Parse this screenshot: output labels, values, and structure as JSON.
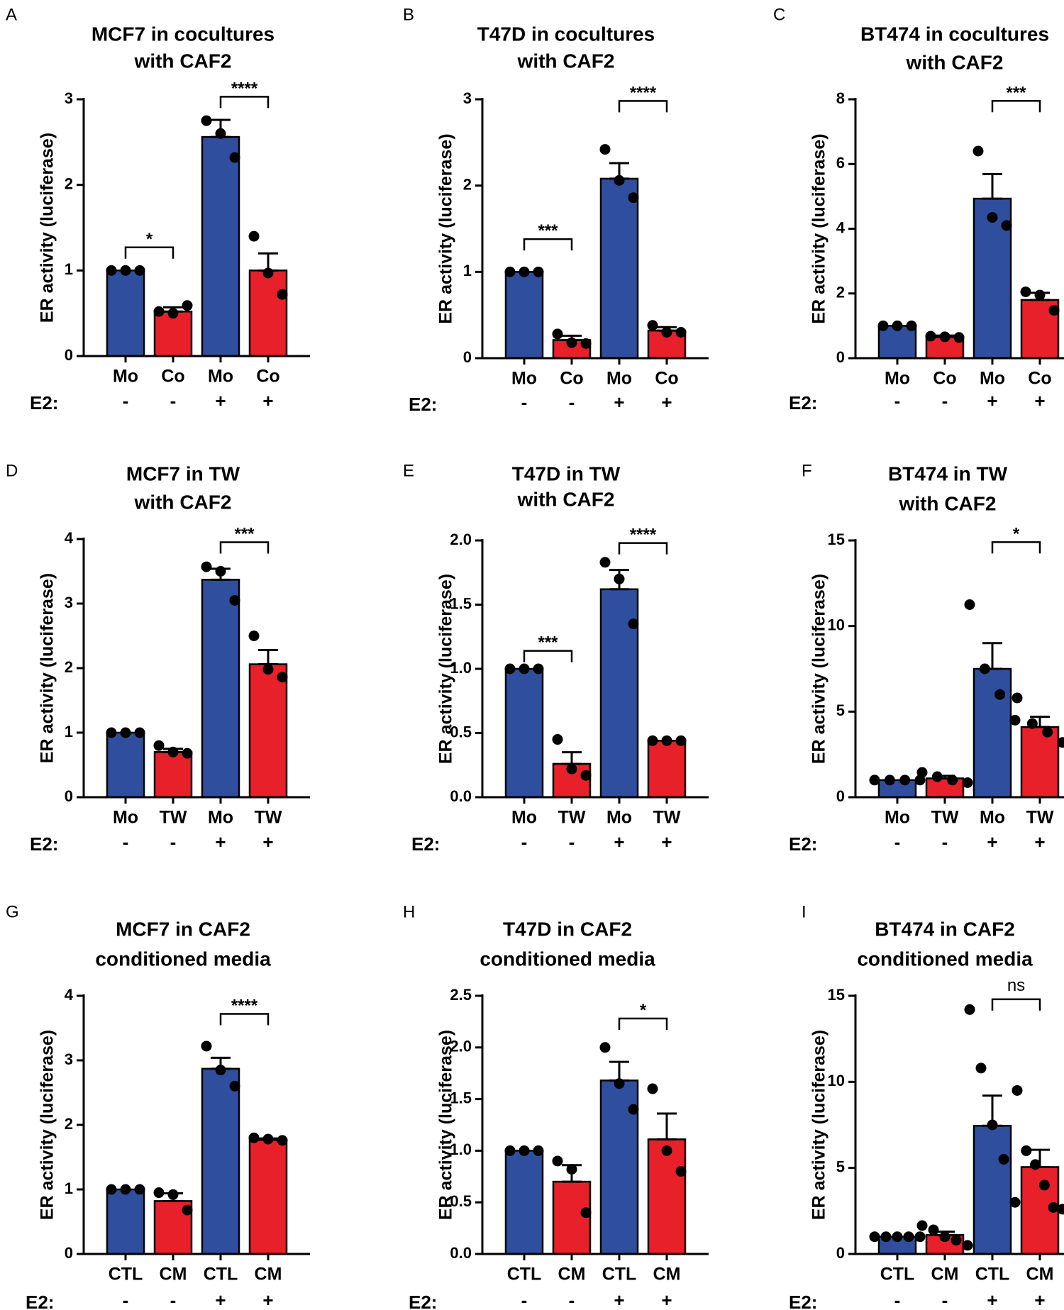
{
  "figure": {
    "e2_label": "E2:"
  },
  "chart_data": [
    {
      "panel": "A",
      "type": "bar",
      "title": [
        "MCF7 in cocultures",
        "with CAF2"
      ],
      "ylabel": "ER activity (luciferase)",
      "ylim": [
        0,
        3
      ],
      "yticks": [
        0,
        1,
        2,
        3
      ],
      "ytick_labels": [
        "0",
        "1",
        "2",
        "3"
      ],
      "categories": [
        "Mo",
        "Co",
        "Mo",
        "Co"
      ],
      "e2": [
        "-",
        "-",
        "+",
        "+"
      ],
      "colors": [
        "#2f4f9e",
        "#e8202a",
        "#2f4f9e",
        "#e8202a"
      ],
      "values": [
        1.0,
        0.52,
        2.56,
        1.0
      ],
      "sem": [
        0.0,
        0.05,
        0.2,
        0.2
      ],
      "points": [
        [
          1.0,
          1.0,
          1.0
        ],
        [
          0.52,
          0.5,
          0.59
        ],
        [
          2.75,
          2.6,
          2.32
        ],
        [
          1.4,
          0.97,
          0.72
        ]
      ],
      "significance": [
        {
          "from": 0,
          "to": 1,
          "y": 1.27,
          "label": "*"
        },
        {
          "from": 2,
          "to": 3,
          "y": 3.03,
          "label": "****"
        }
      ]
    },
    {
      "panel": "B",
      "type": "bar",
      "title": [
        "T47D in cocultures",
        "with CAF2"
      ],
      "ylabel": "ER activity (luciferase)",
      "ylim": [
        0,
        3
      ],
      "yticks": [
        0,
        1,
        2,
        3
      ],
      "ytick_labels": [
        "0",
        "1",
        "2",
        "3"
      ],
      "categories": [
        "Mo",
        "Co",
        "Mo",
        "Co"
      ],
      "e2": [
        "-",
        "-",
        "+",
        "+"
      ],
      "colors": [
        "#2f4f9e",
        "#e8202a",
        "#2f4f9e",
        "#e8202a"
      ],
      "values": [
        1.0,
        0.21,
        2.08,
        0.32
      ],
      "sem": [
        0.0,
        0.05,
        0.18,
        0.04
      ],
      "points": [
        [
          1.0,
          1.0,
          1.0
        ],
        [
          0.28,
          0.18,
          0.17
        ],
        [
          2.42,
          2.06,
          1.86
        ],
        [
          0.38,
          0.3,
          0.3
        ]
      ],
      "significance": [
        {
          "from": 0,
          "to": 1,
          "y": 1.38,
          "label": "***"
        },
        {
          "from": 2,
          "to": 3,
          "y": 2.98,
          "label": "****"
        }
      ]
    },
    {
      "panel": "C",
      "type": "bar",
      "title": [
        "BT474 in cocultures",
        "with CAF2"
      ],
      "ylabel": "ER activity (luciferase)",
      "ylim": [
        0,
        8
      ],
      "yticks": [
        0,
        2,
        4,
        6,
        8
      ],
      "ytick_labels": [
        "0",
        "2",
        "4",
        "6",
        "8"
      ],
      "categories": [
        "Mo",
        "Co",
        "Mo",
        "Co"
      ],
      "e2": [
        "-",
        "-",
        "+",
        "+"
      ],
      "colors": [
        "#2f4f9e",
        "#e8202a",
        "#2f4f9e",
        "#e8202a"
      ],
      "values": [
        1.0,
        0.66,
        4.93,
        1.8
      ],
      "sem": [
        0.0,
        0.04,
        0.76,
        0.22
      ],
      "points": [
        [
          1.0,
          1.0,
          1.0
        ],
        [
          0.68,
          0.66,
          0.64
        ],
        [
          6.4,
          4.35,
          4.1
        ],
        [
          2.05,
          1.95,
          1.48
        ]
      ],
      "significance": [
        {
          "from": 2,
          "to": 3,
          "y": 7.95,
          "label": "***"
        }
      ]
    },
    {
      "panel": "D",
      "type": "bar",
      "title": [
        "MCF7 in TW",
        "with CAF2"
      ],
      "ylabel": "ER activity (luciferase)",
      "ylim": [
        0,
        4
      ],
      "yticks": [
        0,
        1,
        2,
        3,
        4
      ],
      "ytick_labels": [
        "0",
        "1",
        "2",
        "3",
        "4"
      ],
      "categories": [
        "Mo",
        "TW",
        "Mo",
        "TW"
      ],
      "e2": [
        "-",
        "-",
        "+",
        "+"
      ],
      "colors": [
        "#2f4f9e",
        "#e8202a",
        "#2f4f9e",
        "#e8202a"
      ],
      "values": [
        1.0,
        0.7,
        3.37,
        2.06
      ],
      "sem": [
        0.0,
        0.05,
        0.17,
        0.22
      ],
      "points": [
        [
          1.0,
          1.0,
          1.0
        ],
        [
          0.8,
          0.7,
          0.68
        ],
        [
          3.57,
          3.5,
          3.05
        ],
        [
          2.5,
          1.98,
          1.86
        ]
      ],
      "significance": [
        {
          "from": 2,
          "to": 3,
          "y": 3.95,
          "label": "***"
        }
      ]
    },
    {
      "panel": "E",
      "type": "bar",
      "title": [
        "T47D in TW",
        "with CAF2"
      ],
      "ylabel": "ER activity (luciferase)",
      "ylim": [
        0,
        2
      ],
      "yticks": [
        0,
        0.5,
        1,
        1.5,
        2
      ],
      "ytick_labels": [
        "0.0",
        "0.5",
        "1.0",
        "1.5",
        "2.0"
      ],
      "categories": [
        "Mo",
        "TW",
        "Mo",
        "TW"
      ],
      "e2": [
        "-",
        "-",
        "+",
        "+"
      ],
      "colors": [
        "#2f4f9e",
        "#e8202a",
        "#2f4f9e",
        "#e8202a"
      ],
      "values": [
        1.0,
        0.26,
        1.62,
        0.44
      ],
      "sem": [
        0.0,
        0.09,
        0.15,
        0.0
      ],
      "points": [
        [
          1.0,
          1.0,
          1.0
        ],
        [
          0.45,
          0.22,
          0.17
        ],
        [
          1.83,
          1.7,
          1.35
        ],
        [
          0.44,
          0.44,
          0.44
        ]
      ],
      "significance": [
        {
          "from": 0,
          "to": 1,
          "y": 1.14,
          "label": "***"
        },
        {
          "from": 2,
          "to": 3,
          "y": 1.98,
          "label": "****"
        }
      ]
    },
    {
      "panel": "F",
      "type": "bar",
      "title": [
        "BT474 in TW",
        "with CAF2"
      ],
      "ylabel": "ER activity (luciferase)",
      "ylim": [
        0,
        15
      ],
      "yticks": [
        0,
        5,
        10,
        15
      ],
      "ytick_labels": [
        "0",
        "5",
        "10",
        "15"
      ],
      "categories": [
        "Mo",
        "TW",
        "Mo",
        "TW"
      ],
      "e2": [
        "-",
        "-",
        "+",
        "+"
      ],
      "colors": [
        "#2f4f9e",
        "#e8202a",
        "#2f4f9e",
        "#e8202a"
      ],
      "values": [
        1.0,
        1.1,
        7.5,
        4.1
      ],
      "sem": [
        0.0,
        0.15,
        1.5,
        0.6
      ],
      "points": [
        [
          1.0,
          1.0,
          1.0,
          1.0
        ],
        [
          1.45,
          1.2,
          1.0,
          0.85
        ],
        [
          11.25,
          7.5,
          6.0,
          4.5
        ],
        [
          5.8,
          4.3,
          3.8,
          3.2
        ]
      ],
      "significance": [
        {
          "from": 2,
          "to": 3,
          "y": 14.9,
          "label": "*"
        }
      ]
    },
    {
      "panel": "G",
      "type": "bar",
      "title": [
        "MCF7 in CAF2",
        "conditioned media"
      ],
      "ylabel": "ER activity (luciferase)",
      "ylim": [
        0,
        4
      ],
      "yticks": [
        0,
        1,
        2,
        3,
        4
      ],
      "ytick_labels": [
        "0",
        "1",
        "2",
        "3",
        "4"
      ],
      "categories": [
        "CTL",
        "CM",
        "CTL",
        "CM"
      ],
      "e2": [
        "-",
        "-",
        "+",
        "+"
      ],
      "colors": [
        "#2f4f9e",
        "#e8202a",
        "#2f4f9e",
        "#e8202a"
      ],
      "values": [
        1.0,
        0.82,
        2.87,
        1.77
      ],
      "sem": [
        0.0,
        0.12,
        0.17,
        0.02
      ],
      "points": [
        [
          1.0,
          1.0,
          1.0
        ],
        [
          0.95,
          0.92,
          0.68
        ],
        [
          3.22,
          2.85,
          2.6
        ],
        [
          1.8,
          1.78,
          1.76
        ]
      ],
      "significance": [
        {
          "from": 2,
          "to": 3,
          "y": 3.72,
          "label": "****"
        }
      ]
    },
    {
      "panel": "H",
      "type": "bar",
      "title": [
        "T47D in CAF2",
        "conditioned media"
      ],
      "ylabel": "ER activity (luciferase)",
      "ylim": [
        0,
        2.5
      ],
      "yticks": [
        0,
        0.5,
        1,
        1.5,
        2,
        2.5
      ],
      "ytick_labels": [
        "0.0",
        "0.5",
        "1.0",
        "1.5",
        "2.0",
        "2.5"
      ],
      "categories": [
        "CTL",
        "CM",
        "CTL",
        "CM"
      ],
      "e2": [
        "-",
        "-",
        "+",
        "+"
      ],
      "colors": [
        "#2f4f9e",
        "#e8202a",
        "#2f4f9e",
        "#e8202a"
      ],
      "values": [
        1.0,
        0.7,
        1.68,
        1.11
      ],
      "sem": [
        0.0,
        0.16,
        0.18,
        0.25
      ],
      "points": [
        [
          1.0,
          1.0,
          1.0
        ],
        [
          0.9,
          0.82,
          0.4
        ],
        [
          2.0,
          1.65,
          1.4
        ],
        [
          1.6,
          1.0,
          0.8
        ]
      ],
      "significance": [
        {
          "from": 2,
          "to": 3,
          "y": 2.28,
          "label": "*"
        }
      ]
    },
    {
      "panel": "I",
      "type": "bar",
      "title": [
        "BT474 in CAF2",
        "conditioned media"
      ],
      "ylabel": "ER activity (luciferase)",
      "ylim": [
        0,
        15
      ],
      "yticks": [
        0,
        5,
        10,
        15
      ],
      "ytick_labels": [
        "0",
        "5",
        "10",
        "15"
      ],
      "categories": [
        "CTL",
        "CM",
        "CTL",
        "CM"
      ],
      "e2": [
        "-",
        "-",
        "+",
        "+"
      ],
      "colors": [
        "#2f4f9e",
        "#e8202a",
        "#2f4f9e",
        "#e8202a"
      ],
      "values": [
        1.0,
        1.1,
        7.45,
        5.05
      ],
      "sem": [
        0.0,
        0.2,
        1.75,
        1.0
      ],
      "points": [
        [
          1.0,
          1.0,
          1.0,
          1.0,
          1.0
        ],
        [
          1.65,
          1.4,
          1.0,
          0.8,
          0.5
        ],
        [
          14.2,
          10.8,
          7.5,
          5.5,
          3.0
        ],
        [
          9.5,
          6.0,
          5.2,
          4.0,
          2.7,
          2.6
        ]
      ],
      "significance": [
        {
          "from": 2,
          "to": 3,
          "y": 14.8,
          "label": "ns"
        }
      ]
    }
  ]
}
